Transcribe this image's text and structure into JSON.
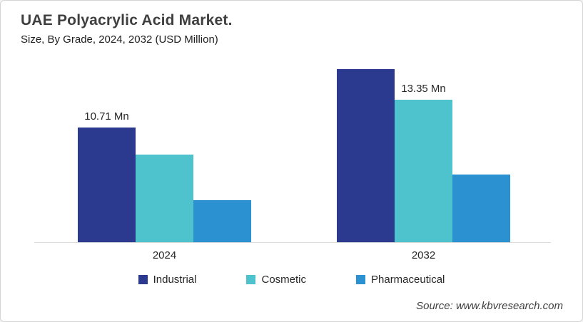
{
  "header": {
    "title": "UAE Polyacrylic Acid Market.",
    "subtitle": "Size, By Grade, 2024, 2032 (USD Million)"
  },
  "source": {
    "text": "Source: www.kbvresearch.com"
  },
  "colors": {
    "industrial": "#2B3A8F",
    "cosmetic": "#4EC3CD",
    "pharmaceutical": "#2C91D1",
    "axis_line": "#D9D9D9",
    "title_text": "#3F3F3F",
    "body_text": "#262626"
  },
  "chart_data": {
    "type": "bar",
    "title": "UAE Polyacrylic Acid Market.",
    "subtitle": "Size, By Grade, 2024, 2032 (USD Million)",
    "unit": "USD Million",
    "value_suffix": " Mn",
    "categories": [
      "2024",
      "2032"
    ],
    "series": [
      {
        "name": "Industrial",
        "color": "#2B3A8F",
        "values": [
          10.71,
          16.2
        ],
        "data_labels": [
          "10.71 Mn",
          null
        ]
      },
      {
        "name": "Cosmetic",
        "color": "#4EC3CD",
        "values": [
          8.2,
          13.35
        ],
        "data_labels": [
          null,
          "13.35 Mn"
        ]
      },
      {
        "name": "Pharmaceutical",
        "color": "#2C91D1",
        "values": [
          3.9,
          6.3
        ],
        "data_labels": [
          null,
          null
        ]
      }
    ],
    "xlabel": "",
    "ylabel": "",
    "ylim": [
      0,
      17
    ],
    "grid": false,
    "y_axis_visible": false,
    "legend_position": "bottom"
  }
}
